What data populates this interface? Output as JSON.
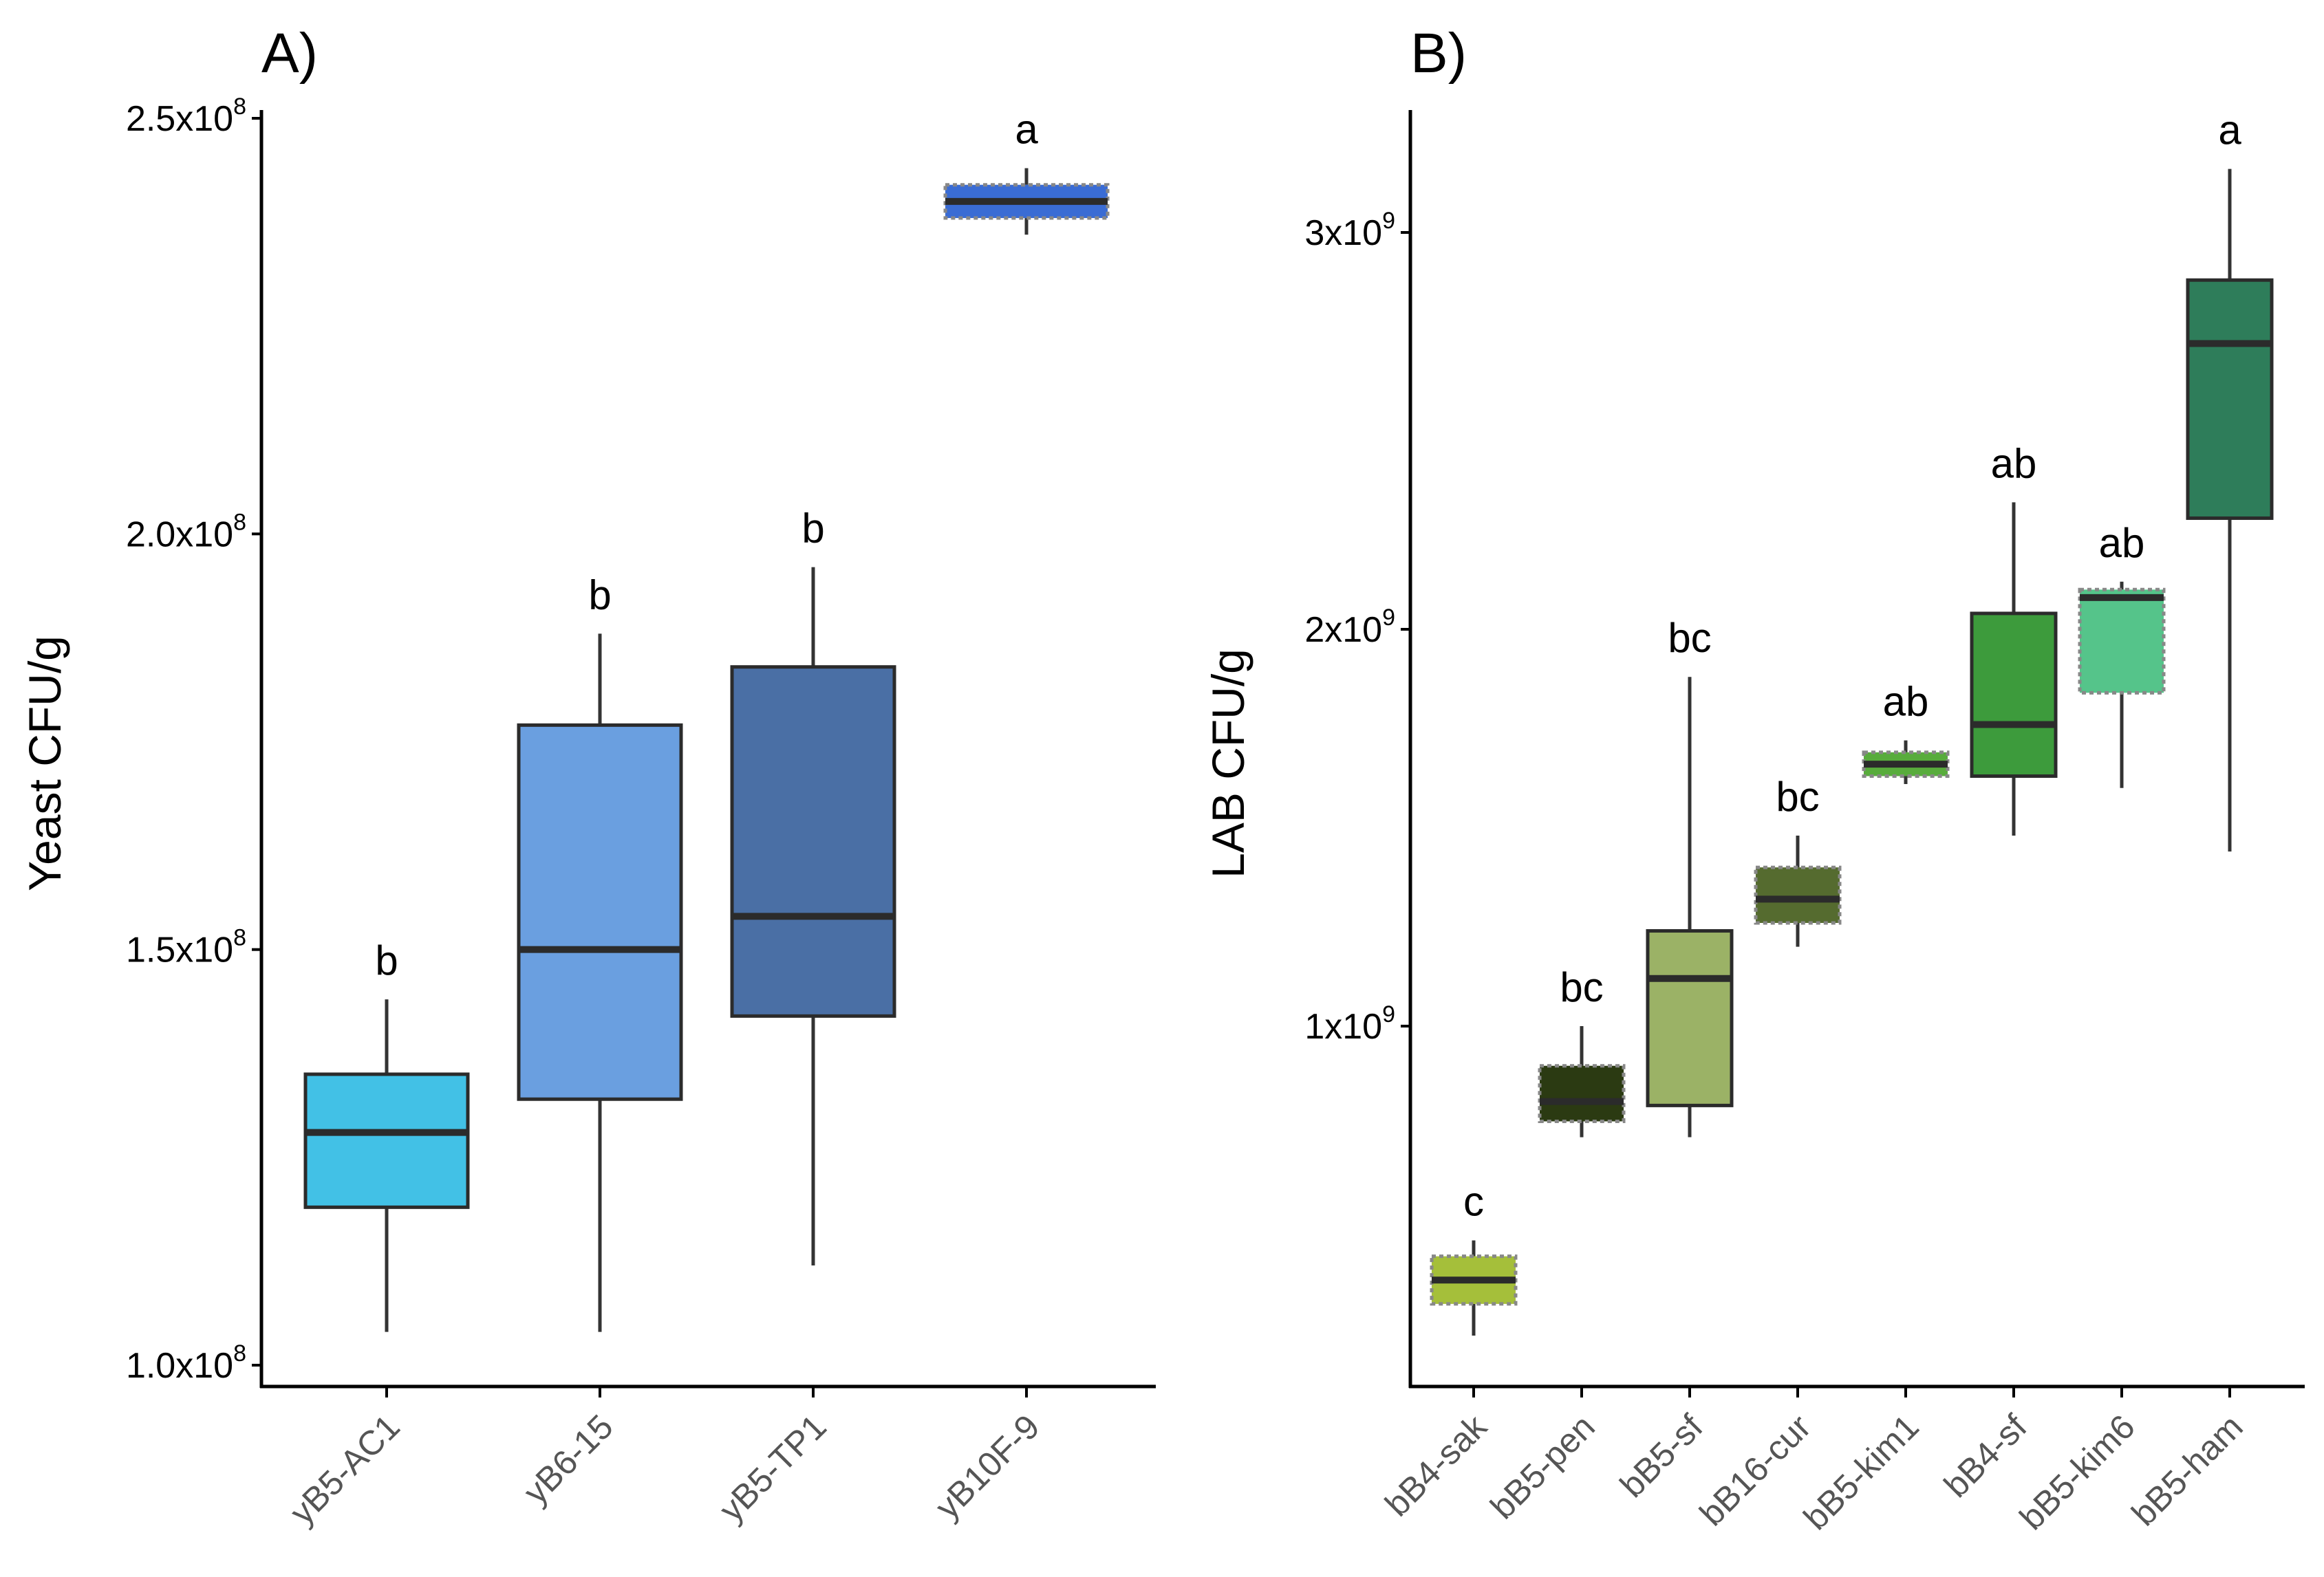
{
  "chart_data": [
    {
      "type": "box",
      "panel_label": "A)",
      "title": "",
      "xlabel": "",
      "ylabel": "Yeast CFU/g",
      "ylim": [
        97000000.0,
        252000000.0
      ],
      "yticks": [
        {
          "value": 250000000.0,
          "base": "2.5x10",
          "exp": "8"
        },
        {
          "value": 200000000.0,
          "base": "2.0x10",
          "exp": "8"
        },
        {
          "value": 150000000.0,
          "base": "1.5x10",
          "exp": "8"
        },
        {
          "value": 100000000.0,
          "base": "1.0x10",
          "exp": "8"
        }
      ],
      "categories": [
        "yB5-AC1",
        "yB6-15",
        "yB5-TP1",
        "yB10F-9"
      ],
      "boxes": [
        {
          "category": "yB5-AC1",
          "min": 104000000.0,
          "q1": 119000000.0,
          "median": 128000000.0,
          "q3": 135000000.0,
          "max": 144000000.0,
          "letter": "b",
          "color": "#42C1E6",
          "dashed": false
        },
        {
          "category": "yB6-15",
          "min": 104000000.0,
          "q1": 132000000.0,
          "median": 150000000.0,
          "q3": 177000000.0,
          "max": 188000000.0,
          "letter": "b",
          "color": "#6A9FE0",
          "dashed": false
        },
        {
          "category": "yB5-TP1",
          "min": 112000000.0,
          "q1": 142000000.0,
          "median": 154000000.0,
          "q3": 184000000.0,
          "max": 196000000.0,
          "letter": "b",
          "color": "#4A6FA5",
          "dashed": false
        },
        {
          "category": "yB10F-9",
          "min": 236000000.0,
          "q1": 238000000.0,
          "median": 240000000.0,
          "q3": 242000000.0,
          "max": 244000000.0,
          "letter": "a",
          "color": "#3A6CD4",
          "dashed": true
        }
      ]
    },
    {
      "type": "box",
      "panel_label": "B)",
      "title": "",
      "xlabel": "",
      "ylabel": "LAB CFU/g",
      "ylim": [
        120000000.0,
        3300000000.0
      ],
      "yticks": [
        {
          "value": 3000000000.0,
          "base": "3x10",
          "exp": "9"
        },
        {
          "value": 2000000000.0,
          "base": "2x10",
          "exp": "9"
        },
        {
          "value": 1000000000.0,
          "base": "1x10",
          "exp": "9"
        }
      ],
      "categories": [
        "bB4-sak",
        "bB5-pen",
        "bB5-sf",
        "bB16-cur",
        "bB5-kim1",
        "bB4-sf",
        "bB5-kim6",
        "bB5-ham"
      ],
      "boxes": [
        {
          "category": "bB4-sak",
          "min": 220000000.0,
          "q1": 300000000.0,
          "median": 360000000.0,
          "q3": 420000000.0,
          "max": 460000000.0,
          "letter": "c",
          "color": "#A5BF3A",
          "dashed": true
        },
        {
          "category": "bB5-pen",
          "min": 720000000.0,
          "q1": 760000000.0,
          "median": 810000000.0,
          "q3": 900000000.0,
          "max": 1000000000.0,
          "letter": "bc",
          "color": "#2B3A12",
          "dashed": true
        },
        {
          "category": "bB5-sf",
          "min": 720000000.0,
          "q1": 800000000.0,
          "median": 1120000000.0,
          "q3": 1240000000.0,
          "max": 1880000000.0,
          "letter": "bc",
          "color": "#9BB266",
          "dashed": false
        },
        {
          "category": "bB16-cur",
          "min": 1200000000.0,
          "q1": 1260000000.0,
          "median": 1320000000.0,
          "q3": 1400000000.0,
          "max": 1480000000.0,
          "letter": "bc",
          "color": "#556B2F",
          "dashed": true
        },
        {
          "category": "bB5-kim1",
          "min": 1610000000.0,
          "q1": 1630000000.0,
          "median": 1660000000.0,
          "q3": 1690000000.0,
          "max": 1720000000.0,
          "letter": "ab",
          "color": "#58AC3C",
          "dashed": true
        },
        {
          "category": "bB4-sf",
          "min": 1480000000.0,
          "q1": 1630000000.0,
          "median": 1760000000.0,
          "q3": 2040000000.0,
          "max": 2320000000.0,
          "letter": "ab",
          "color": "#3D9B3C",
          "dashed": false
        },
        {
          "category": "bB5-kim6",
          "min": 1600000000.0,
          "q1": 1840000000.0,
          "median": 2080000000.0,
          "q3": 2100000000.0,
          "max": 2120000000.0,
          "letter": "ab",
          "color": "#55C48A",
          "dashed": true
        },
        {
          "category": "bB5-ham",
          "min": 1440000000.0,
          "q1": 2280000000.0,
          "median": 2720000000.0,
          "q3": 2880000000.0,
          "max": 3160000000.0,
          "letter": "a",
          "color": "#2E7D5A",
          "dashed": false
        }
      ]
    }
  ]
}
